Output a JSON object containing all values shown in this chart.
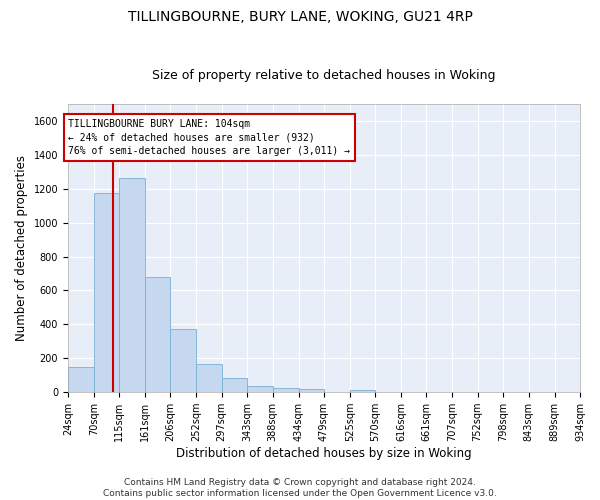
{
  "title": "TILLINGBOURNE, BURY LANE, WOKING, GU21 4RP",
  "subtitle": "Size of property relative to detached houses in Woking",
  "xlabel": "Distribution of detached houses by size in Woking",
  "ylabel": "Number of detached properties",
  "bar_color": "#c5d8f0",
  "bar_edge_color": "#7aafd4",
  "background_color": "#e8eef8",
  "grid_color": "#ffffff",
  "property_line_x": 104,
  "property_line_color": "#cc0000",
  "annotation_text": "TILLINGBOURNE BURY LANE: 104sqm\n← 24% of detached houses are smaller (932)\n76% of semi-detached houses are larger (3,011) →",
  "annotation_box_color": "#cc0000",
  "bin_edges": [
    24,
    70,
    115,
    161,
    206,
    252,
    297,
    343,
    388,
    434,
    479,
    525,
    570,
    616,
    661,
    707,
    752,
    798,
    843,
    889,
    934
  ],
  "bin_labels": [
    "24sqm",
    "70sqm",
    "115sqm",
    "161sqm",
    "206sqm",
    "252sqm",
    "297sqm",
    "343sqm",
    "388sqm",
    "434sqm",
    "479sqm",
    "525sqm",
    "570sqm",
    "616sqm",
    "661sqm",
    "707sqm",
    "752sqm",
    "798sqm",
    "843sqm",
    "889sqm",
    "934sqm"
  ],
  "bar_heights": [
    148,
    1175,
    1265,
    680,
    375,
    168,
    82,
    37,
    27,
    20,
    0,
    14,
    0,
    0,
    0,
    0,
    0,
    0,
    0,
    0
  ],
  "ylim": [
    0,
    1700
  ],
  "yticks": [
    0,
    200,
    400,
    600,
    800,
    1000,
    1200,
    1400,
    1600
  ],
  "footer_text": "Contains HM Land Registry data © Crown copyright and database right 2024.\nContains public sector information licensed under the Open Government Licence v3.0.",
  "title_fontsize": 10,
  "subtitle_fontsize": 9,
  "xlabel_fontsize": 8.5,
  "ylabel_fontsize": 8.5,
  "tick_fontsize": 7,
  "footer_fontsize": 6.5
}
